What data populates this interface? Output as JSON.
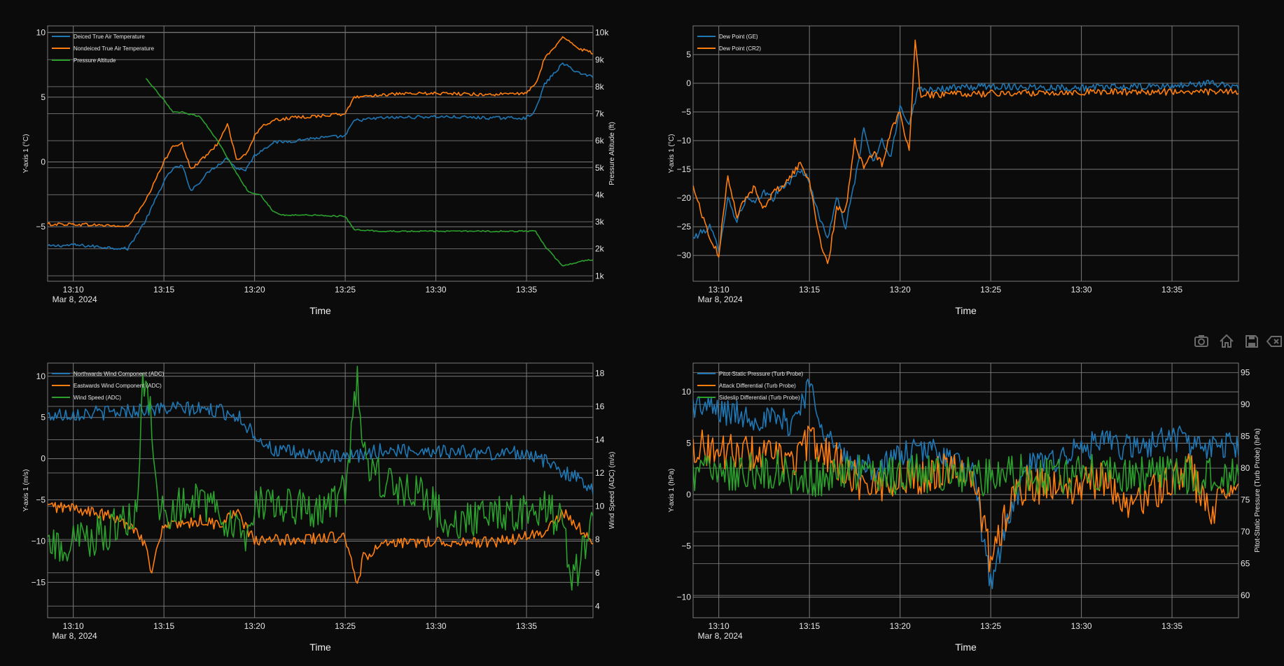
{
  "modebar": {
    "items": [
      {
        "icon": "camera-icon"
      },
      {
        "icon": "home-icon"
      },
      {
        "icon": "save-icon"
      },
      {
        "icon": "clear-icon"
      }
    ]
  },
  "colors": {
    "blue": "#1f77b4",
    "orange": "#ff7f0e",
    "green": "#2ca02c",
    "grid": "#7a7a7a",
    "background": "#0b0b0b"
  },
  "chart_data": [
    {
      "id": "temperature",
      "type": "line",
      "xlabel": "Time",
      "ylabel": "Y-axis 1 (°C)",
      "y2label": "Pressure Altitude (ft)",
      "date_label": "Mar 8, 2024",
      "x_ticks": [
        "13:10",
        "13:15",
        "13:20",
        "13:25",
        "13:30",
        "13:35"
      ],
      "x_range": [
        "13:08:35",
        "13:38:40"
      ],
      "ylim": [
        -9.2,
        10.5
      ],
      "y_ticks": [
        -5,
        0,
        5,
        10
      ],
      "y2lim": [
        800,
        10250
      ],
      "y2_ticks": [
        1000,
        2000,
        3000,
        4000,
        5000,
        6000,
        7000,
        8000,
        9000,
        10000
      ],
      "y2_tick_labels": [
        "1k",
        "2k",
        "3k",
        "4k",
        "5k",
        "6k",
        "7k",
        "8k",
        "9k",
        "10k"
      ],
      "grid": true,
      "legend_position": "top-left",
      "series": [
        {
          "name": "Deiced True Air Temperature",
          "color": "#1f77b4",
          "axis": "y",
          "x": [
            "13:08:35",
            "13:10",
            "13:12",
            "13:13",
            "13:14",
            "13:15",
            "13:15:30",
            "13:16",
            "13:16:30",
            "13:17",
            "13:17:30",
            "13:18",
            "13:18:30",
            "13:19",
            "13:19:30",
            "13:20",
            "13:20:30",
            "13:21",
            "13:22",
            "13:23",
            "13:24",
            "13:25",
            "13:25:30",
            "13:27",
            "13:30",
            "13:33",
            "13:35",
            "13:35:30",
            "13:36",
            "13:37",
            "13:38",
            "13:38:40"
          ],
          "y": [
            -6.5,
            -6.4,
            -6.6,
            -6.7,
            -4.5,
            -1.5,
            -0.5,
            -0.3,
            -2.2,
            -1.5,
            -0.7,
            -0.2,
            0.3,
            -0.5,
            -0.6,
            0.5,
            1.0,
            1.5,
            1.6,
            1.8,
            1.9,
            2.0,
            3.2,
            3.4,
            3.5,
            3.4,
            3.4,
            4.0,
            6.0,
            7.6,
            6.8,
            6.6
          ],
          "noise": 0.12
        },
        {
          "name": "Nondeiced True Air Temperature",
          "color": "#ff7f0e",
          "axis": "y",
          "x": [
            "13:08:35",
            "13:10",
            "13:12",
            "13:13",
            "13:14",
            "13:15",
            "13:15:30",
            "13:16",
            "13:16:30",
            "13:17",
            "13:17:30",
            "13:18",
            "13:18:30",
            "13:19",
            "13:19:30",
            "13:20",
            "13:20:30",
            "13:21",
            "13:22",
            "13:23",
            "13:24",
            "13:25",
            "13:25:30",
            "13:27",
            "13:30",
            "13:33",
            "13:35",
            "13:35:30",
            "13:36",
            "13:37",
            "13:38",
            "13:38:40"
          ],
          "y": [
            -4.8,
            -4.8,
            -4.9,
            -5.0,
            -3.0,
            0.0,
            1.3,
            1.4,
            -0.6,
            0.1,
            0.7,
            1.5,
            3.0,
            0.2,
            0.5,
            2.0,
            2.8,
            3.2,
            3.4,
            3.5,
            3.6,
            3.7,
            5.0,
            5.2,
            5.3,
            5.2,
            5.3,
            6.0,
            8.0,
            9.6,
            8.7,
            8.4
          ],
          "noise": 0.12
        },
        {
          "name": "Pressure Altitude",
          "color": "#2ca02c",
          "axis": "y2",
          "x": [
            "13:14",
            "13:15",
            "13:15:30",
            "13:16",
            "13:17",
            "13:18",
            "13:19",
            "13:19:40",
            "13:20:20",
            "13:21",
            "13:21:30",
            "13:23",
            "13:25",
            "13:25:30",
            "13:27",
            "13:30",
            "13:35",
            "13:35:30",
            "13:36",
            "13:37",
            "13:38",
            "13:38:40"
          ],
          "y": [
            8300,
            7500,
            7050,
            7050,
            6900,
            5950,
            4800,
            4100,
            4000,
            3400,
            3250,
            3250,
            3200,
            2700,
            2650,
            2650,
            2650,
            2650,
            2100,
            1350,
            1550,
            1600
          ],
          "noise": 25
        }
      ]
    },
    {
      "id": "dewpoint",
      "type": "line",
      "xlabel": "Time",
      "ylabel": "Y-axis 1 (°C)",
      "date_label": "Mar 8, 2024",
      "x_ticks": [
        "13:10",
        "13:15",
        "13:20",
        "13:25",
        "13:30",
        "13:35"
      ],
      "x_range": [
        "13:08:35",
        "13:38:40"
      ],
      "ylim": [
        -34.5,
        10
      ],
      "y_ticks": [
        -30,
        -25,
        -20,
        -15,
        -10,
        -5,
        0,
        5
      ],
      "grid": true,
      "legend_position": "top-left",
      "series": [
        {
          "name": "Dew Point (GE)",
          "color": "#1f77b4",
          "axis": "y",
          "x": [
            "13:08:35",
            "13:09:30",
            "13:10",
            "13:10:30",
            "13:11",
            "13:11:30",
            "13:12",
            "13:12:30",
            "13:13",
            "13:13:30",
            "13:14",
            "13:14:30",
            "13:15",
            "13:15:30",
            "13:16",
            "13:16:30",
            "13:17",
            "13:17:30",
            "13:18",
            "13:18:30",
            "13:19",
            "13:19:30",
            "13:20",
            "13:20:30",
            "13:21",
            "13:22",
            "13:25",
            "13:30",
            "13:35",
            "13:37",
            "13:38:40"
          ],
          "y": [
            -27,
            -25,
            -29,
            -20,
            -24,
            -20,
            -21,
            -19,
            -20,
            -18,
            -17,
            -15,
            -17,
            -23,
            -27,
            -20,
            -25,
            -17,
            -8,
            -14,
            -10,
            -13,
            -4,
            -7,
            -1,
            -1,
            -0.5,
            -0.8,
            -0.5,
            0,
            -0.5
          ],
          "noise": 0.6
        },
        {
          "name": "Dew Point (CR2)",
          "color": "#ff7f0e",
          "axis": "y",
          "x": [
            "13:08:35",
            "13:09:30",
            "13:10",
            "13:10:30",
            "13:11",
            "13:11:30",
            "13:12",
            "13:12:30",
            "13:13",
            "13:13:30",
            "13:14",
            "13:14:30",
            "13:15",
            "13:15:30",
            "13:16",
            "13:16:30",
            "13:17",
            "13:17:30",
            "13:18",
            "13:18:30",
            "13:19",
            "13:19:30",
            "13:20",
            "13:20:30",
            "13:20:50",
            "13:21:10",
            "13:21:30",
            "13:22",
            "13:25",
            "13:30",
            "13:35",
            "13:38:40"
          ],
          "y": [
            -18,
            -27,
            -30,
            -16,
            -23,
            -20,
            -18,
            -22,
            -19,
            -18,
            -16,
            -14,
            -17,
            -26,
            -32,
            -22,
            -22,
            -10,
            -15,
            -12,
            -14,
            -8,
            -5,
            -12,
            7,
            -3,
            -2,
            -2,
            -1.8,
            -1.5,
            -1.5,
            -1.5
          ],
          "noise": 0.6
        }
      ]
    },
    {
      "id": "wind",
      "type": "line",
      "xlabel": "Time",
      "ylabel": "Y-axis 1 (m/s)",
      "y2label": "Wind Speed (ADC) (m/s)",
      "date_label": "Mar 8, 2024",
      "x_ticks": [
        "13:10",
        "13:15",
        "13:20",
        "13:25",
        "13:30",
        "13:35"
      ],
      "x_range": [
        "13:08:35",
        "13:38:40"
      ],
      "ylim": [
        -19.3,
        11.6
      ],
      "y_ticks": [
        -15,
        -10,
        -5,
        0,
        5,
        10
      ],
      "y2lim": [
        3.3,
        18.6
      ],
      "y2_ticks": [
        4,
        6,
        8,
        10,
        12,
        14,
        16,
        18
      ],
      "grid": true,
      "legend_position": "top-left",
      "series": [
        {
          "name": "Northwards Wind Component (ADC)",
          "color": "#1f77b4",
          "axis": "y",
          "x": [
            "13:08:35",
            "13:10",
            "13:12",
            "13:14",
            "13:16",
            "13:18",
            "13:19",
            "13:20",
            "13:21",
            "13:23",
            "13:25",
            "13:27",
            "13:30",
            "13:33",
            "13:35",
            "13:37",
            "13:38:40"
          ],
          "y": [
            5.2,
            5.5,
            5.6,
            6.0,
            6.1,
            5.8,
            5.3,
            3.0,
            1.0,
            0.5,
            0.0,
            1.0,
            1.0,
            0.6,
            0.8,
            -1.5,
            -3.5
          ],
          "noise": 0.9
        },
        {
          "name": "Eastwards Wind Component (ADC)",
          "color": "#ff7f0e",
          "axis": "y",
          "x": [
            "13:08:35",
            "13:10",
            "13:12",
            "13:13:30",
            "13:14",
            "13:14:20",
            "13:14:40",
            "13:15",
            "13:16",
            "13:17",
            "13:18",
            "13:19",
            "13:20",
            "13:22",
            "13:25",
            "13:25:40",
            "13:26",
            "13:27",
            "13:30",
            "13:33",
            "13:35",
            "13:36",
            "13:37",
            "13:38:40"
          ],
          "y": [
            -5.8,
            -6.0,
            -7.0,
            -8.5,
            -10.5,
            -14.5,
            -10.0,
            -8.0,
            -8.2,
            -7.5,
            -8.0,
            -6.5,
            -10.0,
            -9.8,
            -9.5,
            -15.5,
            -12.0,
            -10.5,
            -10.0,
            -10.2,
            -9.5,
            -9.0,
            -6.5,
            -10.0
          ],
          "noise": 0.7
        },
        {
          "name": "Wind Speed (ADC)",
          "color": "#2ca02c",
          "axis": "y2",
          "x": [
            "13:08:35",
            "13:10",
            "13:12",
            "13:13:30",
            "13:13:50",
            "13:14:10",
            "13:14:40",
            "13:15",
            "13:16",
            "13:17",
            "13:18",
            "13:19",
            "13:19:30",
            "13:20",
            "13:22",
            "13:24",
            "13:25",
            "13:25:40",
            "13:26",
            "13:27",
            "13:29",
            "13:31",
            "13:33",
            "13:35",
            "13:36",
            "13:37",
            "13:37:30",
            "13:38:40"
          ],
          "y": [
            7.8,
            7.7,
            8.5,
            9.5,
            17.5,
            16.5,
            10.5,
            9.5,
            10.0,
            10.5,
            9.5,
            9.0,
            7.5,
            10.5,
            10.0,
            9.5,
            11.0,
            18.0,
            13.0,
            11.5,
            11.0,
            9.0,
            9.5,
            9.5,
            10.0,
            9.0,
            5.0,
            9.5
          ],
          "noise": 1.2
        }
      ]
    },
    {
      "id": "pressure",
      "type": "line",
      "xlabel": "Time",
      "ylabel": "Y-axis 1 (hPa)",
      "y2label": "Pitot-Static Pressure (Turb Probe) (hPa)",
      "date_label": "Mar 8, 2024",
      "x_ticks": [
        "13:10",
        "13:15",
        "13:20",
        "13:25",
        "13:30",
        "13:35"
      ],
      "x_range": [
        "13:08:35",
        "13:38:40"
      ],
      "ylim": [
        -12,
        12.8
      ],
      "y_ticks": [
        -10,
        -5,
        0,
        5,
        10
      ],
      "y2lim": [
        56.5,
        96.5
      ],
      "y2_ticks": [
        60,
        65,
        70,
        75,
        80,
        85,
        90,
        95
      ],
      "grid": true,
      "legend_position": "top-left",
      "series": [
        {
          "name": "Pitot-Static Pressure (Turb Probe)",
          "color": "#1f77b4",
          "axis": "y2",
          "x": [
            "13:08:35",
            "13:10",
            "13:12",
            "13:14",
            "13:14:40",
            "13:15",
            "13:15:30",
            "13:16",
            "13:17",
            "13:18",
            "13:19",
            "13:20",
            "13:22",
            "13:24",
            "13:25",
            "13:26",
            "13:27",
            "13:29",
            "13:31",
            "13:33",
            "13:35",
            "13:37",
            "13:38:40"
          ],
          "y": [
            90,
            89,
            88,
            87,
            91,
            93,
            89,
            85,
            81,
            80,
            80,
            82,
            83,
            79,
            62,
            72,
            80,
            82,
            84,
            83,
            85,
            83,
            84
          ],
          "noise": 2.2
        },
        {
          "name": "Attack Differential (Turb Probe)",
          "color": "#ff7f0e",
          "axis": "y",
          "x": [
            "13:08:35",
            "13:10",
            "13:12",
            "13:13:30",
            "13:14",
            "13:15",
            "13:16",
            "13:17",
            "13:18",
            "13:20",
            "13:22",
            "13:23",
            "13:24",
            "13:25",
            "13:26",
            "13:27",
            "13:29",
            "13:31",
            "13:33",
            "13:35",
            "13:36",
            "13:37",
            "13:38:40"
          ],
          "y": [
            4.8,
            4.2,
            4.0,
            3.5,
            3.0,
            5.2,
            4.0,
            2.5,
            0.8,
            1.5,
            2.0,
            3.0,
            2.0,
            -6.5,
            -1.0,
            1.0,
            0.5,
            1.5,
            -1.0,
            1.5,
            2.5,
            -2.0,
            2.0
          ],
          "noise": 1.8
        },
        {
          "name": "Sideslip Differential (Turb Probe)",
          "color": "#2ca02c",
          "axis": "y",
          "x": [
            "13:08:35",
            "13:10",
            "13:12",
            "13:13:30",
            "13:14",
            "13:16",
            "13:18",
            "13:20",
            "13:22",
            "13:24",
            "13:25",
            "13:26",
            "13:28",
            "13:30",
            "13:32",
            "13:34",
            "13:36",
            "13:38",
            "13:38:40"
          ],
          "y": [
            2.2,
            2.3,
            2.4,
            2.5,
            1.8,
            1.8,
            2.0,
            2.0,
            2.0,
            2.0,
            1.5,
            2.0,
            2.0,
            2.0,
            2.0,
            2.0,
            2.0,
            2.0,
            2.0
          ],
          "noise": 2.0
        }
      ]
    }
  ]
}
